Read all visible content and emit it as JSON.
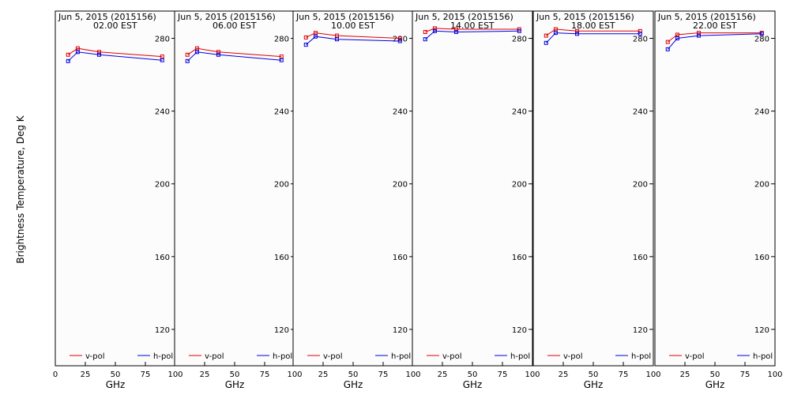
{
  "chart_data": {
    "type": "line",
    "ylabel": "Brightness Temperature, Deg K",
    "xlabel": "GHz",
    "xlim": [
      0,
      100
    ],
    "ylim": [
      100,
      295
    ],
    "y_ticks": [
      120,
      160,
      200,
      240,
      280
    ],
    "x_ticks": [
      0,
      25,
      50,
      75,
      100
    ],
    "x_tick_labels": [
      "0",
      "25",
      "50",
      "75",
      "100"
    ],
    "grid": false,
    "legend_placement": "bottom",
    "series_styles": [
      {
        "name": "v-pol",
        "color": "#e00000"
      },
      {
        "name": "h-pol",
        "color": "#0000e0"
      }
    ],
    "x": [
      10.7,
      18.7,
      36.5,
      89.0
    ],
    "panels": [
      {
        "title": "Jun  5, 2015 (2015156)",
        "subtitle": "02.00 EST",
        "series": [
          {
            "name": "v-pol",
            "values": [
              271,
              274.5,
              272.5,
              270
            ]
          },
          {
            "name": "h-pol",
            "values": [
              267.5,
              272.5,
              271,
              268
            ]
          }
        ]
      },
      {
        "title": "Jun  5, 2015 (2015156)",
        "subtitle": "06.00 EST",
        "series": [
          {
            "name": "v-pol",
            "values": [
              271,
              274.5,
              272.5,
              270
            ]
          },
          {
            "name": "h-pol",
            "values": [
              267.5,
              272.5,
              271,
              268
            ]
          }
        ]
      },
      {
        "title": "Jun  5, 2015 (2015156)",
        "subtitle": "10.00 EST",
        "series": [
          {
            "name": "v-pol",
            "values": [
              280.5,
              283,
              281.5,
              280
            ]
          },
          {
            "name": "h-pol",
            "values": [
              276.5,
              281,
              279.5,
              278.5
            ]
          }
        ]
      },
      {
        "title": "Jun  5, 2015 (2015156)",
        "subtitle": "14.00 EST",
        "series": [
          {
            "name": "v-pol",
            "values": [
              283.5,
              285.5,
              285,
              285
            ]
          },
          {
            "name": "h-pol",
            "values": [
              279.5,
              284,
              283.5,
              284
            ]
          }
        ]
      },
      {
        "title": "Jun  5, 2015 (2015156)",
        "subtitle": "18.00 EST",
        "series": [
          {
            "name": "v-pol",
            "values": [
              281.5,
              285,
              284,
              284
            ]
          },
          {
            "name": "h-pol",
            "values": [
              277.5,
              283,
              282.5,
              282.5
            ]
          }
        ]
      },
      {
        "title": "Jun  5, 2015 (2015156)",
        "subtitle": "22.00 EST",
        "series": [
          {
            "name": "v-pol",
            "values": [
              278,
              282,
              283,
              283
            ]
          },
          {
            "name": "h-pol",
            "values": [
              274,
              280,
              281.5,
              282.5
            ]
          }
        ]
      }
    ]
  }
}
